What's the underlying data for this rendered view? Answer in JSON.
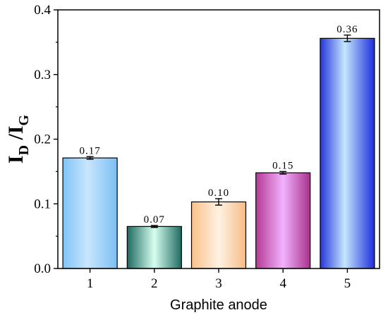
{
  "chart_data": {
    "type": "bar",
    "xlabel": "Graphite anode",
    "ylabel_main": "I",
    "ylabel_sub_1": "D",
    "ylabel_sep": " /I",
    "ylabel_sub_2": "G",
    "categories": [
      "1",
      "2",
      "3",
      "4",
      "5"
    ],
    "values": [
      0.171,
      0.065,
      0.103,
      0.148,
      0.356
    ],
    "errors": [
      0.002,
      0.0015,
      0.005,
      0.002,
      0.005
    ],
    "data_labels": [
      "0.17",
      "0.07",
      "0.10",
      "0.15",
      "0.36"
    ],
    "ylim": [
      0.0,
      0.4
    ],
    "yticks": [
      "0.0",
      "0.1",
      "0.2",
      "0.3",
      "0.4"
    ],
    "grid": false,
    "colors": [
      "#8fcaf6",
      "#4fa89e",
      "#f8c28c",
      "#c850a8",
      "#3a5cf0"
    ]
  }
}
